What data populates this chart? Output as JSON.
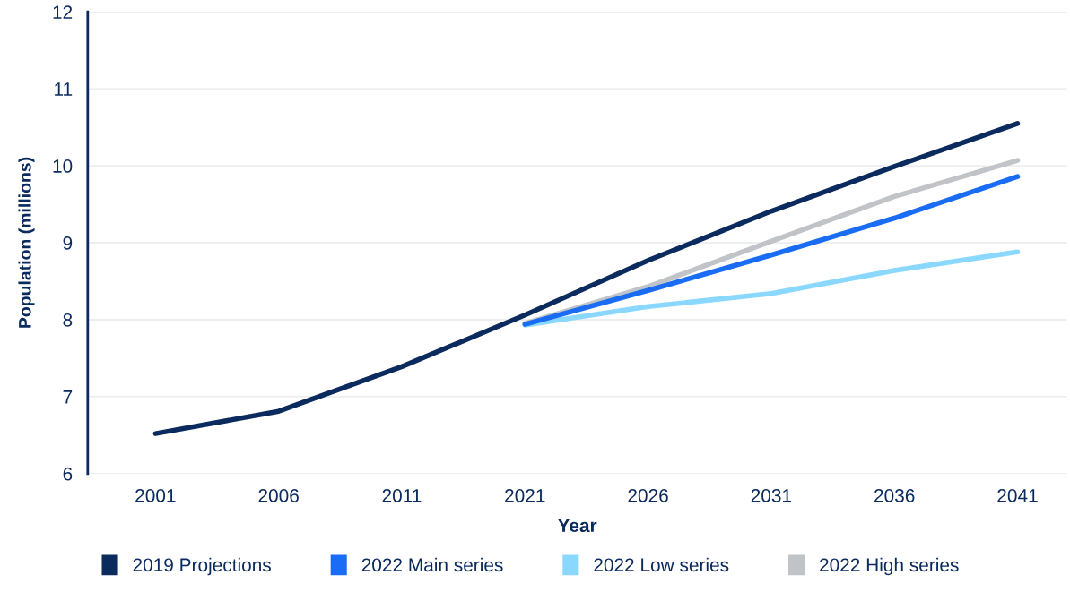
{
  "chart_data": {
    "type": "line",
    "xlabel": "Year",
    "ylabel": "Population (millions)",
    "categories": [
      "2001",
      "2006",
      "2011",
      "2021",
      "2026",
      "2031",
      "2036",
      "2041"
    ],
    "series": [
      {
        "name": "2019 Projections",
        "color": "#0b2a5e",
        "values": [
          6.52,
          6.81,
          7.39,
          8.06,
          8.77,
          9.41,
          9.99,
          10.55
        ]
      },
      {
        "name": "2022 Main series",
        "color": "#1a6cf5",
        "values": [
          null,
          null,
          null,
          7.94,
          8.38,
          8.84,
          9.32,
          9.86
        ]
      },
      {
        "name": "2022 Low series",
        "color": "#8ad8ff",
        "values": [
          null,
          null,
          null,
          7.93,
          8.17,
          8.34,
          8.64,
          8.88
        ]
      },
      {
        "name": "2022 High series",
        "color": "#c0c4c8",
        "values": [
          null,
          null,
          null,
          7.95,
          8.43,
          9.02,
          9.6,
          10.07
        ]
      }
    ],
    "ylim": [
      6,
      12
    ],
    "yticks": [
      6,
      7,
      8,
      9,
      10,
      11,
      12
    ],
    "grid": "y",
    "legend": "bottom",
    "marker": "none",
    "line_style": "solid"
  }
}
